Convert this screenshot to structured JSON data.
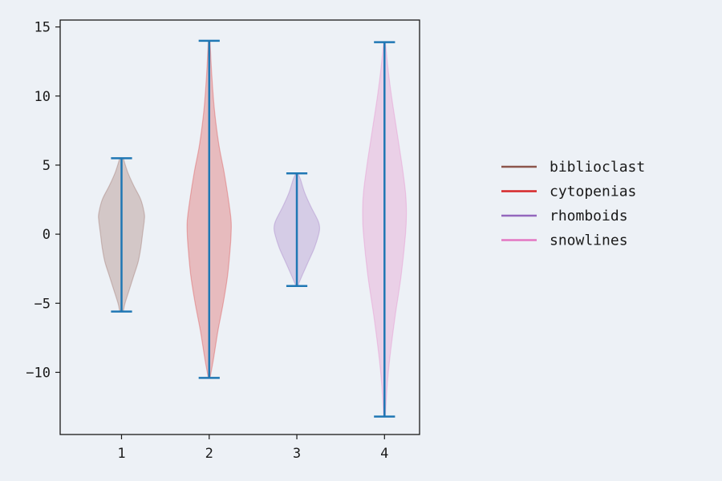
{
  "chart_data": {
    "type": "violin",
    "title": "",
    "xlabel": "",
    "ylabel": "",
    "xlim": [
      0.3,
      4.4
    ],
    "ylim": [
      -14.5,
      15.5
    ],
    "x_ticks": [
      "1",
      "2",
      "3",
      "4"
    ],
    "y_ticks": [
      15,
      10,
      5,
      0,
      -5,
      -10
    ],
    "y_tick_labels": [
      "15",
      "10",
      "5",
      "0",
      "−5",
      "−10"
    ],
    "grid": false,
    "legend_placement": "right",
    "extrema_color": "#1f77b4",
    "series": [
      {
        "name": "biblioclast",
        "position": 1,
        "color": "#8c564b",
        "min": -5.6,
        "max": 5.5,
        "profile_y": [
          -5.6,
          -5.0,
          -4.0,
          -3.0,
          -2.0,
          -1.0,
          0.0,
          1.0,
          1.5,
          2.5,
          3.5,
          4.5,
          5.5
        ],
        "profile_halfwidth": [
          0.02,
          0.04,
          0.09,
          0.14,
          0.19,
          0.22,
          0.24,
          0.26,
          0.26,
          0.22,
          0.14,
          0.07,
          0.02
        ]
      },
      {
        "name": "cytopenias",
        "position": 2,
        "color": "#d62728",
        "min": -10.4,
        "max": 14.0,
        "profile_y": [
          -10.4,
          -9.0,
          -7.0,
          -5.0,
          -3.0,
          -1.0,
          0.0,
          1.0,
          2.5,
          4.5,
          6.5,
          9.0,
          11.5,
          14.0
        ],
        "profile_halfwidth": [
          0.01,
          0.05,
          0.1,
          0.16,
          0.21,
          0.24,
          0.25,
          0.25,
          0.22,
          0.17,
          0.11,
          0.06,
          0.03,
          0.01
        ]
      },
      {
        "name": "rhomboids",
        "position": 3,
        "color": "#9467bd",
        "min": -3.75,
        "max": 4.4,
        "profile_y": [
          -3.75,
          -3.0,
          -2.0,
          -1.0,
          0.0,
          0.5,
          1.0,
          2.0,
          3.0,
          4.0,
          4.4
        ],
        "profile_halfwidth": [
          0.01,
          0.06,
          0.13,
          0.2,
          0.25,
          0.26,
          0.24,
          0.16,
          0.09,
          0.04,
          0.01
        ]
      },
      {
        "name": "snowlines",
        "position": 4,
        "color": "#e377c2",
        "min": -13.2,
        "max": 13.9,
        "profile_y": [
          -13.2,
          -11.0,
          -9.0,
          -6.0,
          -3.0,
          0.0,
          1.5,
          3.0,
          5.0,
          7.5,
          10.0,
          12.0,
          13.9
        ],
        "profile_halfwidth": [
          0.01,
          0.03,
          0.06,
          0.12,
          0.19,
          0.24,
          0.25,
          0.24,
          0.2,
          0.14,
          0.08,
          0.04,
          0.01
        ]
      }
    ]
  }
}
